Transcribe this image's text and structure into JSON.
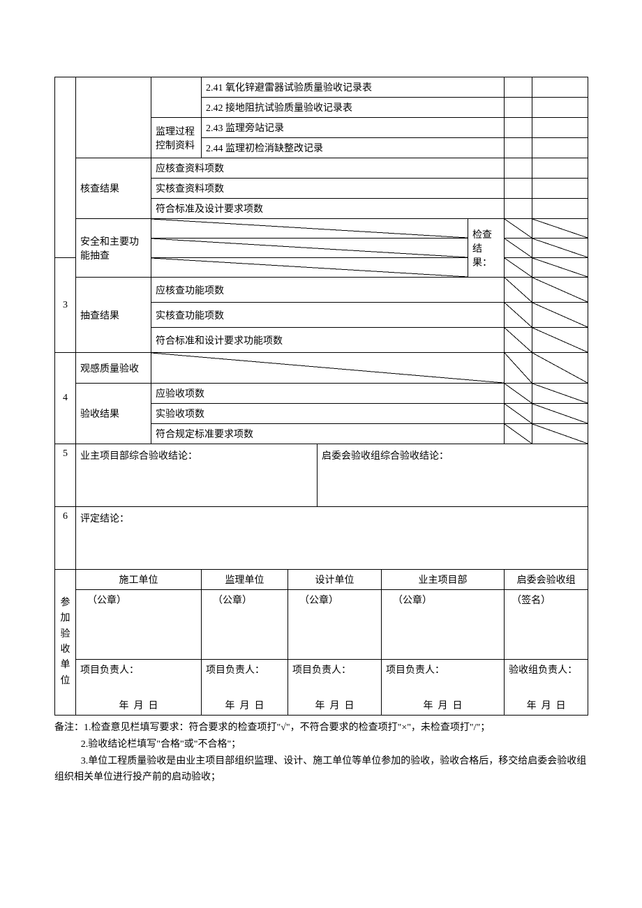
{
  "row241": "2.41 氧化锌避雷器试验质量验收记录表",
  "row242": "2.42 接地阻抗试验质量验收记录表",
  "supervisionLabel": "监理过程控制资料",
  "row243": "2.43 监理旁站记录",
  "row244": "2.44 监理初检消缺整改记录",
  "checkResult": "核查结果",
  "shouldCheckItems": "应核查资料项数",
  "actualCheckItems": "实核查资料项数",
  "meetsStandard": "符合标准及设计要求项数",
  "sec3": "3",
  "safetyFunc": "安全和主要功能抽查",
  "checkResultLabel": "检查结果：",
  "spotResult": "抽查结果",
  "shouldCheckFunc": "应核查功能项数",
  "actualCheckFunc": "实核查功能项数",
  "meetsFuncStandard": "符合标准和设计要求功能项数",
  "sec4": "4",
  "visualQuality": "观感质量验收",
  "acceptResult": "验收结果",
  "shouldAccept": "应验收项数",
  "actualAccept": "实验收项数",
  "meetsRegStandard": "符合规定标准要求项数",
  "sec5": "5",
  "ownerConclusion": "业主项目部综合验收结论：",
  "committeeConclusion": "启委会验收组综合验收结论：",
  "sec6": "6",
  "evalConclusion": "评定结论：",
  "participants": "参加验收单位",
  "constructionUnit": "施工单位",
  "supervisionUnit": "监理单位",
  "designUnit": "设计单位",
  "ownerDept": "业主项目部",
  "acceptGroup": "启委会验收组",
  "seal": "（公章）",
  "signature": "（签名）",
  "projectLeader": "项目负责人：",
  "groupLeader": "验收组负责人：",
  "dateYMD": "年  月  日",
  "note1": "备注：1.检查意见栏填写要求：符合要求的检查项打\"√\"，不符合要求的检查项打\"×\"，未检查项打\"/\"；",
  "note2": "2.验收结论栏填写\"合格\"或\"不合格\"；",
  "note3": "3.单位工程质量验收是由业主项目部组织监理、设计、施工单位等单位参加的验收，验收合格后，移交给启委会验收组组织相关单位进行投产前的启动验收；"
}
